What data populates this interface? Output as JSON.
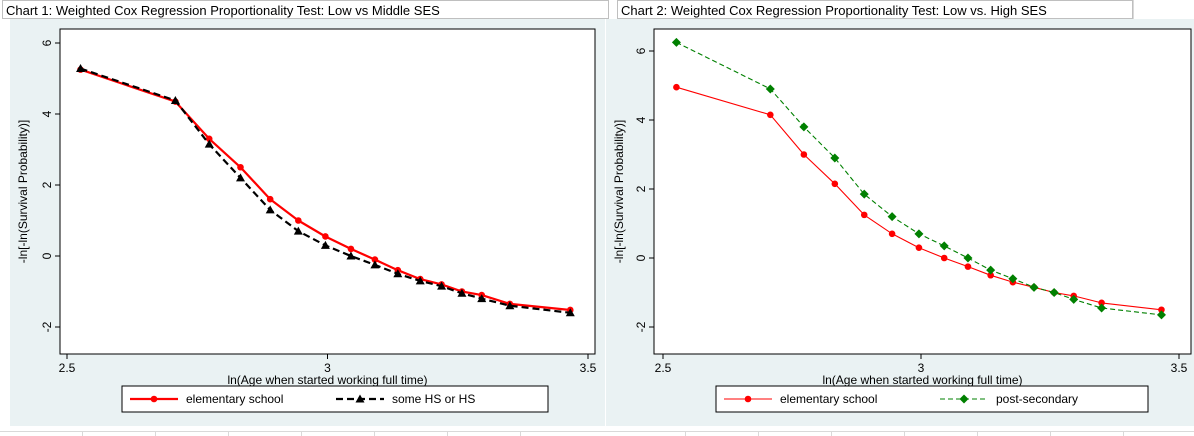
{
  "chart_data": [
    {
      "type": "line",
      "title": "Chart 1: Weighted Cox Regression Proportionality Test: Low vs Middle SES",
      "xlabel": "ln(Age when started working full time)",
      "ylabel": "-ln[-ln(Survival Probability)]",
      "xlim": [
        2.5,
        3.5
      ],
      "ylim": [
        -2,
        6
      ],
      "xticks": [
        "2.5",
        "3",
        "3.5"
      ],
      "yticks": [
        "-2",
        "0",
        "2",
        "4",
        "6"
      ],
      "grid": false,
      "legend": "bottom",
      "series": [
        {
          "name": "elementary school",
          "color": "#ff0000",
          "dash": "solid",
          "marker": "circle",
          "x": [
            2.526,
            2.708,
            2.773,
            2.833,
            2.89,
            2.944,
            2.996,
            3.045,
            3.091,
            3.135,
            3.178,
            3.219,
            3.258,
            3.296,
            3.35,
            3.466
          ],
          "y": [
            5.25,
            4.35,
            3.3,
            2.5,
            1.6,
            1.0,
            0.55,
            0.2,
            -0.1,
            -0.4,
            -0.65,
            -0.8,
            -1.0,
            -1.1,
            -1.35,
            -1.52
          ]
        },
        {
          "name": "some HS or HS",
          "color": "#000000",
          "dash": "dashed",
          "marker": "triangle",
          "x": [
            2.526,
            2.708,
            2.773,
            2.833,
            2.89,
            2.944,
            2.996,
            3.045,
            3.091,
            3.135,
            3.178,
            3.219,
            3.258,
            3.296,
            3.35,
            3.466
          ],
          "y": [
            5.28,
            4.38,
            3.15,
            2.2,
            1.3,
            0.7,
            0.3,
            0.0,
            -0.25,
            -0.5,
            -0.7,
            -0.85,
            -1.05,
            -1.2,
            -1.4,
            -1.6
          ]
        }
      ]
    },
    {
      "type": "line",
      "title": "Chart 2: Weighted Cox Regression Proportionality Test: Low vs. High SES",
      "xlabel": "ln(Age when started working full time)",
      "ylabel": "-ln[-ln(Survival Probability)]",
      "xlim": [
        2.5,
        3.5
      ],
      "ylim": [
        -2,
        6
      ],
      "xticks": [
        "2.5",
        "3",
        "3.5"
      ],
      "yticks": [
        "-2",
        "0",
        "2",
        "4",
        "6"
      ],
      "grid": false,
      "legend": "bottom",
      "series": [
        {
          "name": "elementary school",
          "color": "#ff0000",
          "dash": "solid",
          "marker": "circle",
          "x": [
            2.526,
            2.708,
            2.773,
            2.833,
            2.89,
            2.944,
            2.996,
            3.045,
            3.091,
            3.135,
            3.178,
            3.219,
            3.258,
            3.296,
            3.35,
            3.466
          ],
          "y": [
            4.95,
            4.15,
            3.0,
            2.15,
            1.25,
            0.7,
            0.3,
            0.0,
            -0.25,
            -0.5,
            -0.7,
            -0.85,
            -1.0,
            -1.1,
            -1.3,
            -1.5
          ]
        },
        {
          "name": "post-secondary",
          "color": "#008000",
          "dash": "dashed",
          "marker": "diamond",
          "x": [
            2.526,
            2.708,
            2.773,
            2.833,
            2.89,
            2.944,
            2.996,
            3.045,
            3.091,
            3.135,
            3.178,
            3.219,
            3.258,
            3.296,
            3.35,
            3.466
          ],
          "y": [
            6.25,
            4.9,
            3.8,
            2.9,
            1.85,
            1.2,
            0.7,
            0.35,
            0.0,
            -0.35,
            -0.6,
            -0.85,
            -1.0,
            -1.2,
            -1.45,
            -1.65
          ]
        }
      ]
    }
  ]
}
